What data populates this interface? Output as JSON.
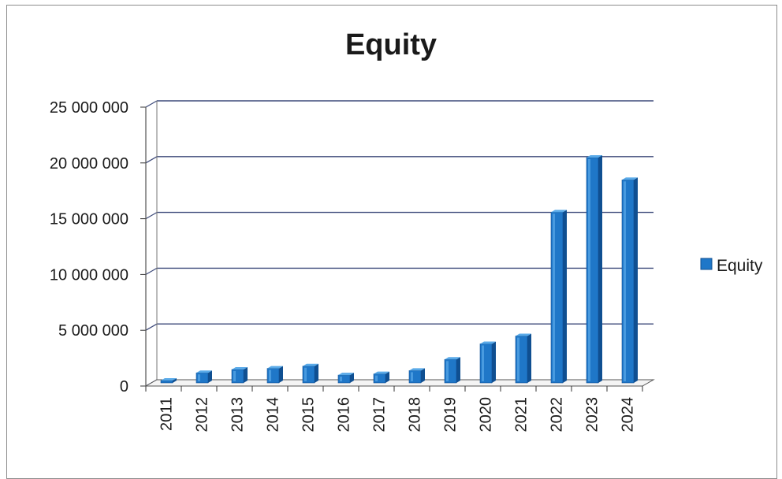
{
  "chart_data": {
    "type": "bar",
    "title": "Equity",
    "categories": [
      "2011",
      "2012",
      "2013",
      "2014",
      "2015",
      "2016",
      "2017",
      "2018",
      "2019",
      "2020",
      "2021",
      "2022",
      "2023",
      "2024"
    ],
    "series": [
      {
        "name": "Equity",
        "values": [
          200000,
          900000,
          1200000,
          1300000,
          1500000,
          700000,
          800000,
          1100000,
          2100000,
          3500000,
          4200000,
          15300000,
          20200000,
          18200000
        ]
      }
    ],
    "y_ticks": [
      "0",
      "5 000 000",
      "10 000 000",
      "15 000 000",
      "20 000 000",
      "25 000 000"
    ],
    "y_tick_values": [
      0,
      5000000,
      10000000,
      15000000,
      20000000,
      25000000
    ],
    "ylim": [
      0,
      25000000
    ],
    "grid": true,
    "legend_position": "right",
    "colors": {
      "bar": "#1f77c8",
      "bar_dark": "#0f4f91",
      "bar_light": "#5aaae8",
      "grid": "#3d4a7a"
    }
  }
}
